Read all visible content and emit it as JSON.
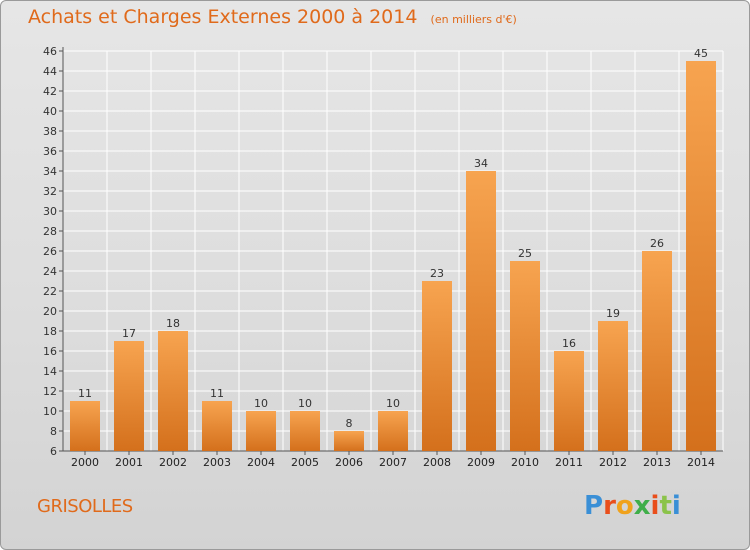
{
  "title": "Achats et Charges Externes 2000 à 2014",
  "unit_note": "(en milliers d'€)",
  "place": "GRISOLLES",
  "logo": {
    "text": "Proxiti",
    "colors": [
      "#3a8fd6",
      "#e94e1b",
      "#f0a21c",
      "#3fae49",
      "#e94e1b",
      "#8bc34a",
      "#3a8fd6"
    ]
  },
  "colors": {
    "bar_light": "#f7a450",
    "bar_dark": "#d4701c",
    "title": "#e06a1b",
    "grid": "#ffffff"
  },
  "chart_data": {
    "type": "bar",
    "categories": [
      "2000",
      "2001",
      "2002",
      "2003",
      "2004",
      "2005",
      "2006",
      "2007",
      "2008",
      "2009",
      "2010",
      "2011",
      "2012",
      "2013",
      "2014"
    ],
    "values": [
      11,
      17,
      18,
      11,
      10,
      10,
      8,
      10,
      23,
      34,
      25,
      16,
      19,
      26,
      45
    ],
    "ylim": [
      6,
      46
    ],
    "yticks": [
      6,
      8,
      10,
      12,
      14,
      16,
      18,
      20,
      22,
      24,
      26,
      28,
      30,
      32,
      34,
      36,
      38,
      40,
      42,
      44,
      46
    ],
    "grid": true
  }
}
